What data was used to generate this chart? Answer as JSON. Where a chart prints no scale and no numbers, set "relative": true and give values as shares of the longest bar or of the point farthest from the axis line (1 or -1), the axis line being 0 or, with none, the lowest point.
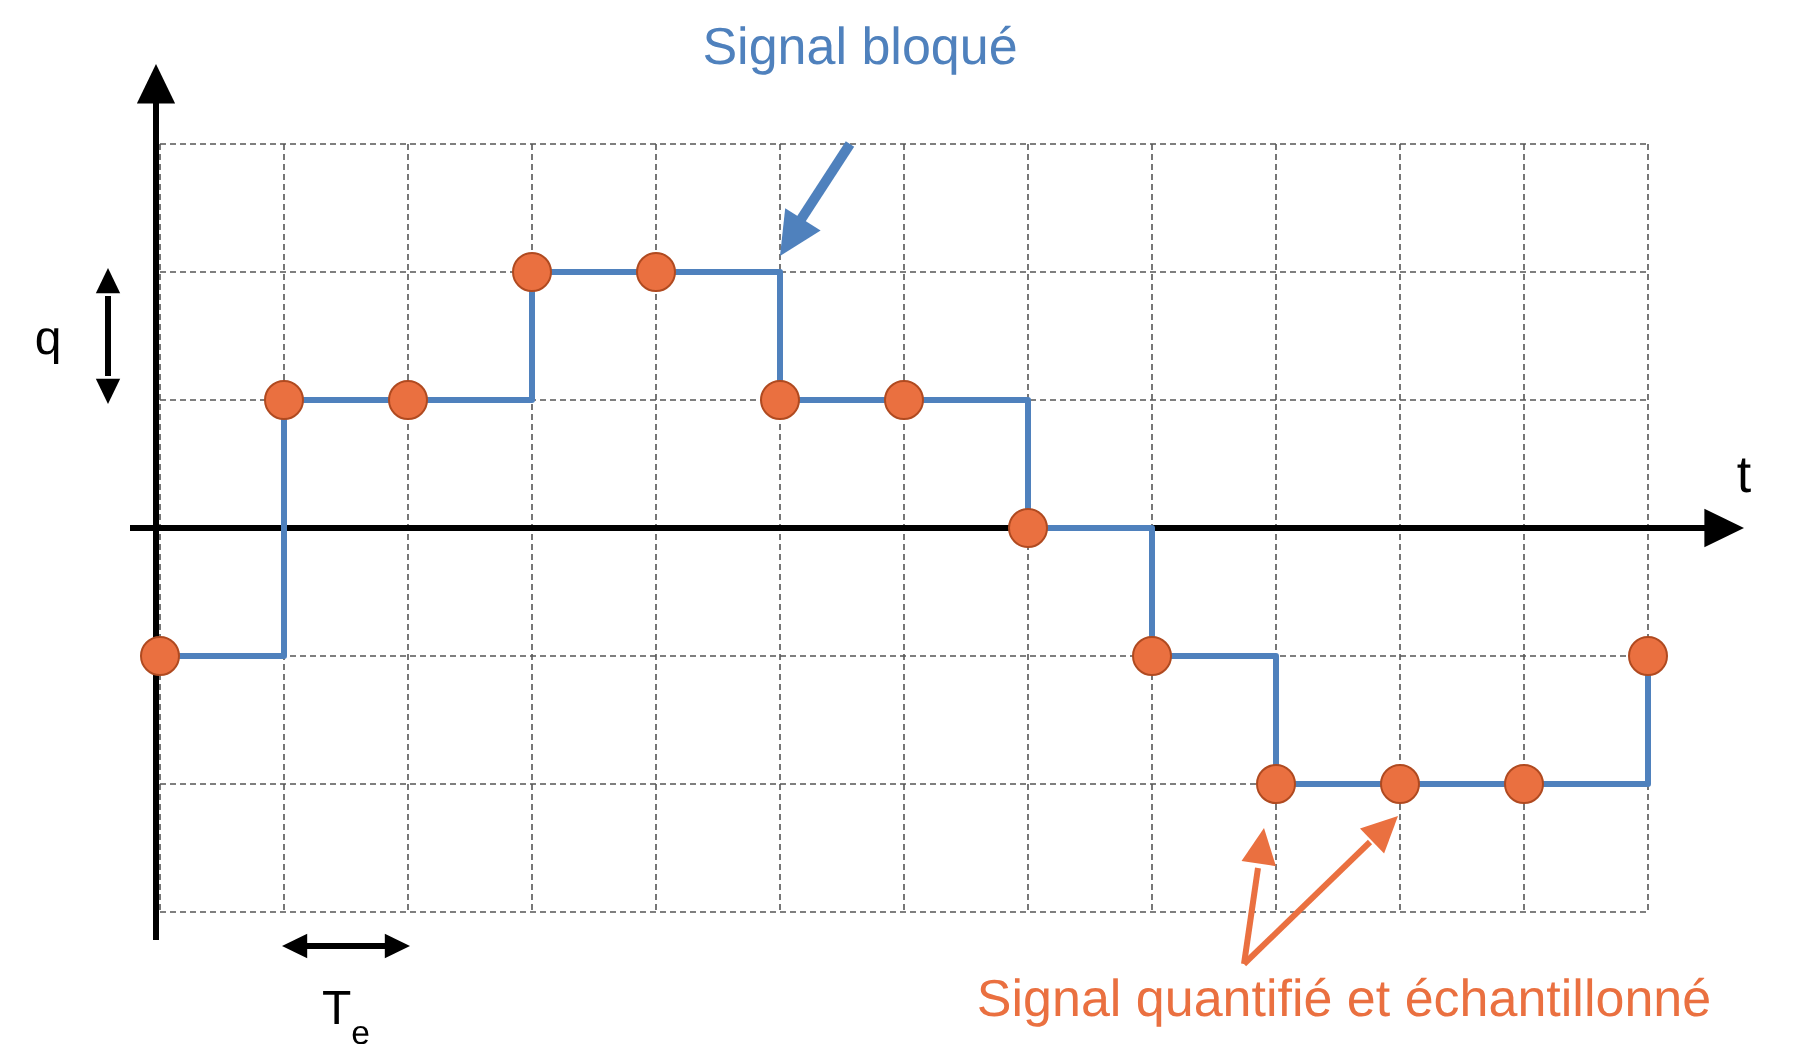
{
  "chart_data": {
    "type": "step",
    "relative": true,
    "categories": [
      null,
      null,
      null,
      null,
      null,
      null,
      null,
      null,
      null,
      null,
      null,
      null,
      null
    ],
    "xlabel": "t",
    "grid": true,
    "marker": "circle",
    "line_style": "solid",
    "annotations": [
      "Signal bloqué",
      "Signal quantifié et échantillonné",
      "q",
      "T$_{e}$"
    ],
    "series": [
      {
        "color": "#4f81bd",
        "values": [
          -0.5,
          0.5,
          0.5,
          1,
          1,
          0.5,
          0.5,
          0,
          -0.5,
          -1,
          -1,
          -1,
          -0.5
        ]
      }
    ]
  }
}
